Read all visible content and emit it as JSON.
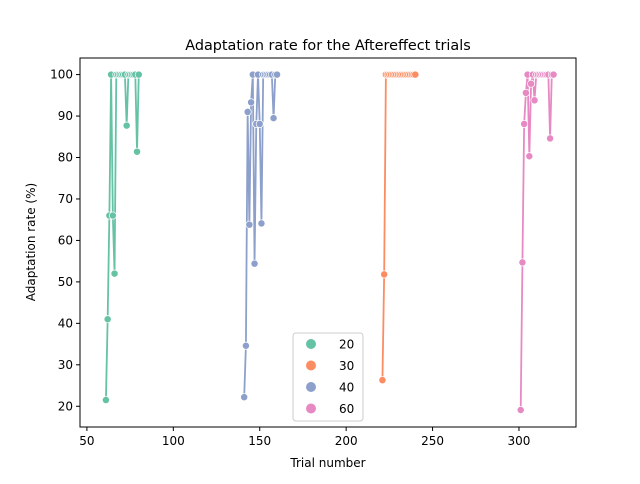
{
  "chart_data": {
    "type": "line",
    "title": "Adaptation rate for the Aftereffect trials",
    "xlabel": "Trial number",
    "ylabel": "Adaptation rate (%)",
    "xlim": [
      46,
      333
    ],
    "ylim": [
      15,
      104
    ],
    "xticks": [
      50,
      100,
      150,
      200,
      250,
      300
    ],
    "yticks": [
      20,
      30,
      40,
      50,
      60,
      70,
      80,
      90,
      100
    ],
    "grid": false,
    "legend_position": "lower-center",
    "series": [
      {
        "name": "20",
        "color": "#66c2a5",
        "x": [
          61,
          62,
          63,
          64,
          65,
          66,
          67,
          68,
          69,
          70,
          71,
          72,
          73,
          74,
          75,
          76,
          77,
          78,
          79,
          80
        ],
        "y": [
          21.5,
          41,
          66,
          100,
          66,
          52,
          100,
          100,
          100,
          100,
          100,
          100,
          87.7,
          100,
          100,
          100,
          100,
          100,
          81.4,
          100
        ]
      },
      {
        "name": "30",
        "color": "#fc8d62",
        "x": [
          221,
          222,
          223,
          224,
          225,
          226,
          227,
          228,
          229,
          230,
          231,
          232,
          233,
          234,
          235,
          236,
          237,
          238,
          239,
          240
        ],
        "y": [
          26.3,
          51.8,
          100,
          100,
          100,
          100,
          100,
          100,
          100,
          100,
          100,
          100,
          100,
          100,
          100,
          100,
          100,
          100,
          100,
          100
        ]
      },
      {
        "name": "40",
        "color": "#8da0cb",
        "x": [
          141,
          142,
          143,
          144,
          145,
          146,
          147,
          148,
          149,
          150,
          151,
          152,
          153,
          154,
          155,
          156,
          157,
          158,
          159,
          160
        ],
        "y": [
          22.2,
          34.6,
          91,
          63.8,
          93.3,
          100,
          54.4,
          88.1,
          100,
          88.1,
          64.1,
          100,
          100,
          100,
          100,
          100,
          100,
          89.5,
          100,
          100
        ]
      },
      {
        "name": "60",
        "color": "#e78ac3",
        "x": [
          301,
          302,
          303,
          304,
          305,
          306,
          307,
          308,
          309,
          310,
          311,
          312,
          313,
          314,
          315,
          316,
          317,
          318,
          319,
          320
        ],
        "y": [
          19.1,
          54.7,
          88.1,
          95.6,
          100,
          80.3,
          97.8,
          100,
          93.8,
          100,
          100,
          100,
          100,
          100,
          100,
          100,
          100,
          84.6,
          100,
          100
        ]
      }
    ]
  }
}
